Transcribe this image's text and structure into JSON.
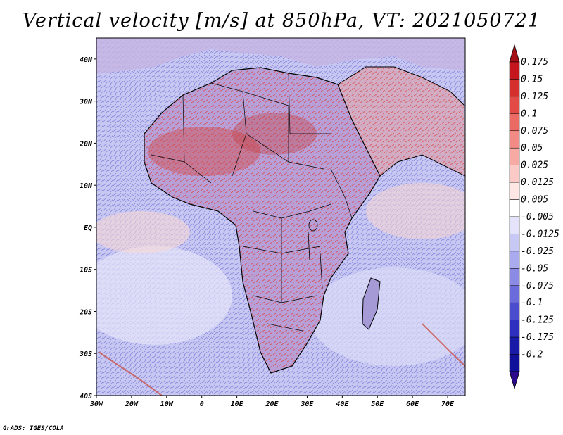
{
  "title": "Vertical velocity [m/s] at 850hPa, VT: 2021050721",
  "credit": "GrADS: IGES/COLA",
  "map": {
    "region": "Africa",
    "lon_range": [
      -30,
      75
    ],
    "lat_range": [
      -40,
      45
    ],
    "lon_ticks": [
      "30W",
      "20W",
      "10W",
      "0",
      "10E",
      "20E",
      "30E",
      "40E",
      "50E",
      "60E",
      "70E"
    ],
    "lat_ticks": [
      "40N",
      "30N",
      "20N",
      "10N",
      "EQ",
      "10S",
      "20S",
      "30S",
      "40S"
    ]
  },
  "colorbar": {
    "labels": [
      "0.175",
      "0.15",
      "0.125",
      "0.1",
      "0.075",
      "0.05",
      "0.025",
      "0.0125",
      "0.005",
      "-0.005",
      "-0.0125",
      "-0.025",
      "-0.05",
      "-0.075",
      "-0.1",
      "-0.125",
      "-0.175",
      "-0.2"
    ],
    "colors": [
      "#a50f15",
      "#c4161c",
      "#d6302e",
      "#e34a45",
      "#ec6a64",
      "#f28b85",
      "#f7aaa4",
      "#fbcac6",
      "#fde6e3",
      "#ffffff",
      "#e3e3fb",
      "#c8c8f5",
      "#aaaaee",
      "#8b8be6",
      "#6b6bdc",
      "#4c4ccf",
      "#2f2fbf",
      "#1a1aa8",
      "#10109a",
      "#2d0a8c"
    ]
  }
}
